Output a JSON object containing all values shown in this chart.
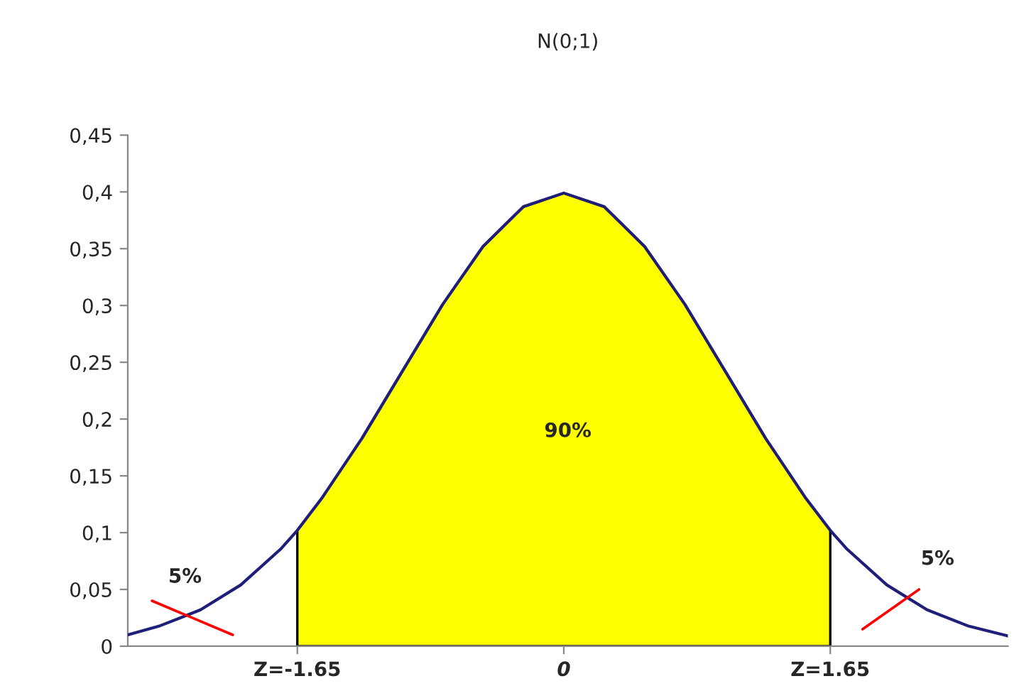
{
  "chart_data": {
    "type": "line",
    "title": "N(0;1)",
    "xlim": [
      -2.7,
      2.75
    ],
    "ylim": [
      0,
      0.45
    ],
    "xticks": [
      {
        "value": -1.65,
        "label": "Z=-1.65"
      },
      0,
      {
        "value": 1.65,
        "label": "Z=1.65"
      }
    ],
    "yticks": [
      0,
      {
        "value": 0.05,
        "label": "0,05"
      },
      {
        "value": 0.1,
        "label": "0,1"
      },
      {
        "value": 0.15,
        "label": "0,15"
      },
      {
        "value": 0.2,
        "label": "0,2"
      },
      {
        "value": 0.25,
        "label": "0,25"
      },
      {
        "value": 0.3,
        "label": "0,3"
      },
      {
        "value": 0.35,
        "label": "0,35"
      },
      {
        "value": 0.4,
        "label": "0,4"
      },
      {
        "value": 0.45,
        "label": "0,45"
      }
    ],
    "grid": false,
    "legend": false,
    "marker": "none",
    "line_style": "solid",
    "series": [
      {
        "type": "area",
        "color": "#ffff00",
        "x": [
          -1.65,
          -1.5,
          -1.25,
          -1,
          -0.75,
          -0.5,
          -0.25,
          0,
          0.25,
          0.5,
          0.75,
          1,
          1.25,
          1.5,
          1.65
        ],
        "values": [
          0.102,
          0.13,
          0.183,
          0.242,
          0.301,
          0.352,
          0.387,
          0.399,
          0.387,
          0.352,
          0.301,
          0.242,
          0.183,
          0.13,
          0.102
        ]
      },
      {
        "color": "#1f1f7a",
        "x": [
          -2.7,
          -2.5,
          -2.25,
          -2,
          -1.75,
          -1.65,
          -1.5,
          -1.25,
          -1,
          -0.75,
          -0.5,
          -0.25,
          0,
          0.25,
          0.5,
          0.75,
          1,
          1.25,
          1.5,
          1.65,
          1.75,
          2,
          2.25,
          2.5,
          2.75
        ],
        "values": [
          0.01,
          0.018,
          0.032,
          0.054,
          0.086,
          0.102,
          0.13,
          0.183,
          0.242,
          0.301,
          0.352,
          0.387,
          0.399,
          0.387,
          0.352,
          0.301,
          0.242,
          0.183,
          0.13,
          0.102,
          0.086,
          0.054,
          0.032,
          0.018,
          0.009
        ]
      }
    ],
    "annotations": [
      "5%",
      "90%",
      "5%"
    ]
  }
}
